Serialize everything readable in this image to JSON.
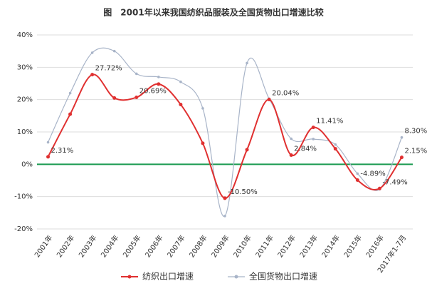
{
  "chart_data": {
    "type": "line",
    "title": "图　2001年以来我国纺织品服装及全国货物出口增速比较",
    "categories": [
      "2001年",
      "2002年",
      "2003年",
      "2004年",
      "2005年",
      "2006年",
      "2007年",
      "2008年",
      "2009年",
      "2010年",
      "2011年",
      "2012年",
      "2013年",
      "2014年",
      "2015年",
      "2016年",
      "2017年1-7月"
    ],
    "series": [
      {
        "name": "纺织出口增速",
        "color": "#e03030",
        "values": [
          2.31,
          15.5,
          27.72,
          20.5,
          20.69,
          24.8,
          18.5,
          6.5,
          -10.5,
          4.5,
          20.04,
          2.84,
          11.41,
          4.8,
          -4.89,
          -7.49,
          2.15
        ],
        "value_labels": [
          "2.31%",
          null,
          "27.72%",
          null,
          "20.69%",
          null,
          null,
          null,
          "-10.50%",
          null,
          "20.04%",
          "2.84%",
          "11.41%",
          null,
          "-4.89%",
          "-7.49%",
          "2.15%"
        ]
      },
      {
        "name": "全国货物出口增速",
        "color": "#a8b4c8",
        "values": [
          6.8,
          22,
          34.5,
          35,
          28,
          27,
          25.5,
          17.3,
          -16,
          31.3,
          20.3,
          7.9,
          7.8,
          6.1,
          -2.9,
          -7.7,
          8.3
        ],
        "value_labels": [
          null,
          null,
          null,
          null,
          null,
          null,
          null,
          null,
          null,
          null,
          null,
          null,
          null,
          null,
          null,
          null,
          "8.30%"
        ]
      }
    ],
    "ylim": [
      -20,
      40
    ],
    "yticks": [
      {
        "value": -20,
        "label": "-20%"
      },
      {
        "value": -10,
        "label": "-10%"
      },
      {
        "value": 0,
        "label": "0%"
      },
      {
        "value": 10,
        "label": "10%"
      },
      {
        "value": 20,
        "label": "20%"
      },
      {
        "value": 30,
        "label": "30%"
      },
      {
        "value": 40,
        "label": "40%"
      }
    ],
    "grid": true,
    "zero_line_color": "#1a9a50",
    "legend": "bottom"
  }
}
